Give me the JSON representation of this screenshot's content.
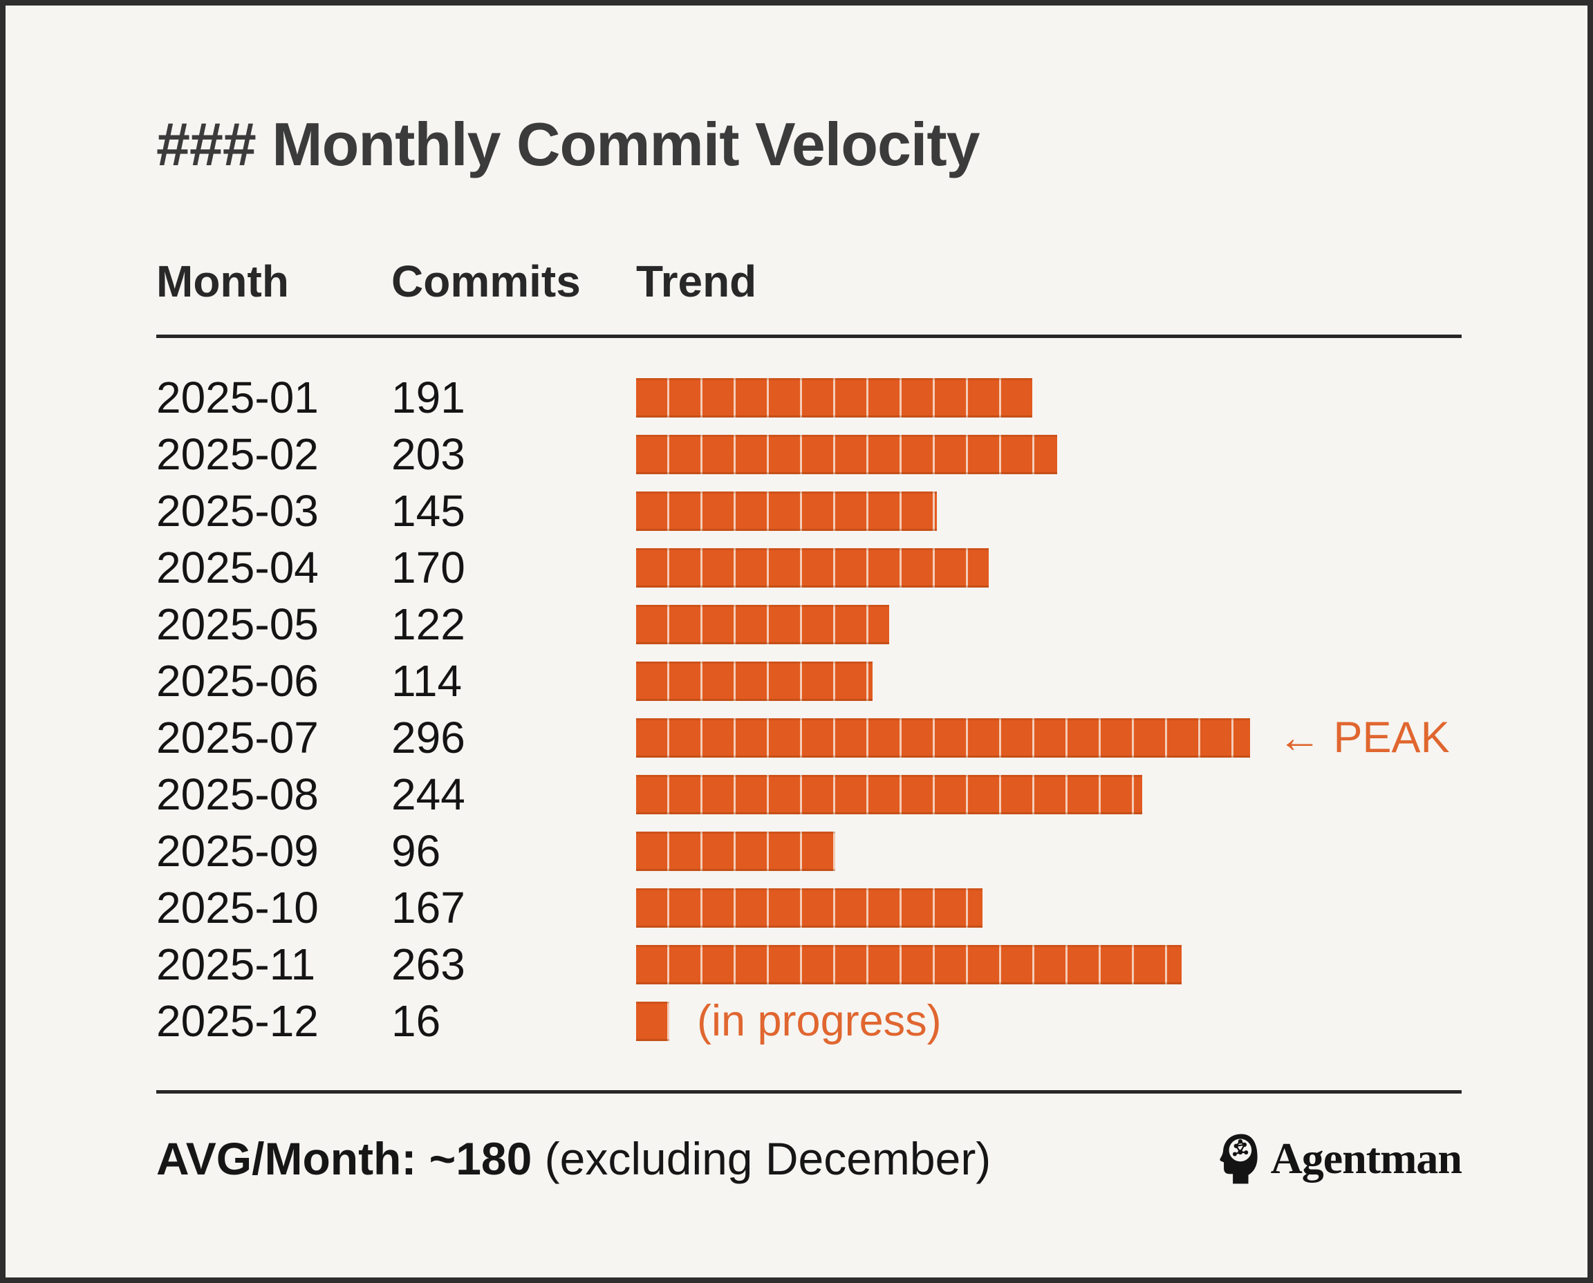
{
  "colors": {
    "background": "#F6F5F2",
    "frame_border": "#2E2E2E",
    "bar": "#E15A1F",
    "accent_text": "#E0662F",
    "title_text": "#3B3B3B"
  },
  "title": "### Monthly Commit Velocity",
  "table": {
    "headers": {
      "month": "Month",
      "commits": "Commits",
      "trend": "Trend"
    }
  },
  "rows": [
    {
      "month": "2025-01",
      "commits": "191",
      "note": ""
    },
    {
      "month": "2025-02",
      "commits": "203",
      "note": ""
    },
    {
      "month": "2025-03",
      "commits": "145",
      "note": ""
    },
    {
      "month": "2025-04",
      "commits": "170",
      "note": ""
    },
    {
      "month": "2025-05",
      "commits": "122",
      "note": ""
    },
    {
      "month": "2025-06",
      "commits": "114",
      "note": ""
    },
    {
      "month": "2025-07",
      "commits": "296",
      "note": "← PEAK"
    },
    {
      "month": "2025-08",
      "commits": "244",
      "note": ""
    },
    {
      "month": "2025-09",
      "commits": "96",
      "note": ""
    },
    {
      "month": "2025-10",
      "commits": "167",
      "note": ""
    },
    {
      "month": "2025-11",
      "commits": "263",
      "note": ""
    },
    {
      "month": "2025-12",
      "commits": "16",
      "note": "(in progress)"
    }
  ],
  "chart_data": {
    "type": "bar",
    "orientation": "horizontal",
    "title": "Monthly Commit Velocity",
    "categories": [
      "2025-01",
      "2025-02",
      "2025-03",
      "2025-04",
      "2025-05",
      "2025-06",
      "2025-07",
      "2025-08",
      "2025-09",
      "2025-10",
      "2025-11",
      "2025-12"
    ],
    "values": [
      191,
      203,
      145,
      170,
      122,
      114,
      296,
      244,
      96,
      167,
      263,
      16
    ],
    "xlabel": "Commits",
    "ylabel": "Month",
    "xlim": [
      0,
      300
    ],
    "grid": false,
    "legend_position": "none",
    "block_unit_commits": 16,
    "annotations": [
      {
        "category": "2025-07",
        "value": 296,
        "label": "← PEAK",
        "kind": "peak"
      },
      {
        "category": "2025-12",
        "value": 16,
        "label": "(in progress)",
        "kind": "in-progress"
      }
    ]
  },
  "footer": {
    "summary_strong": "AVG/Month: ~180",
    "summary_regular": " (excluding December)",
    "brand": "Agentman"
  }
}
